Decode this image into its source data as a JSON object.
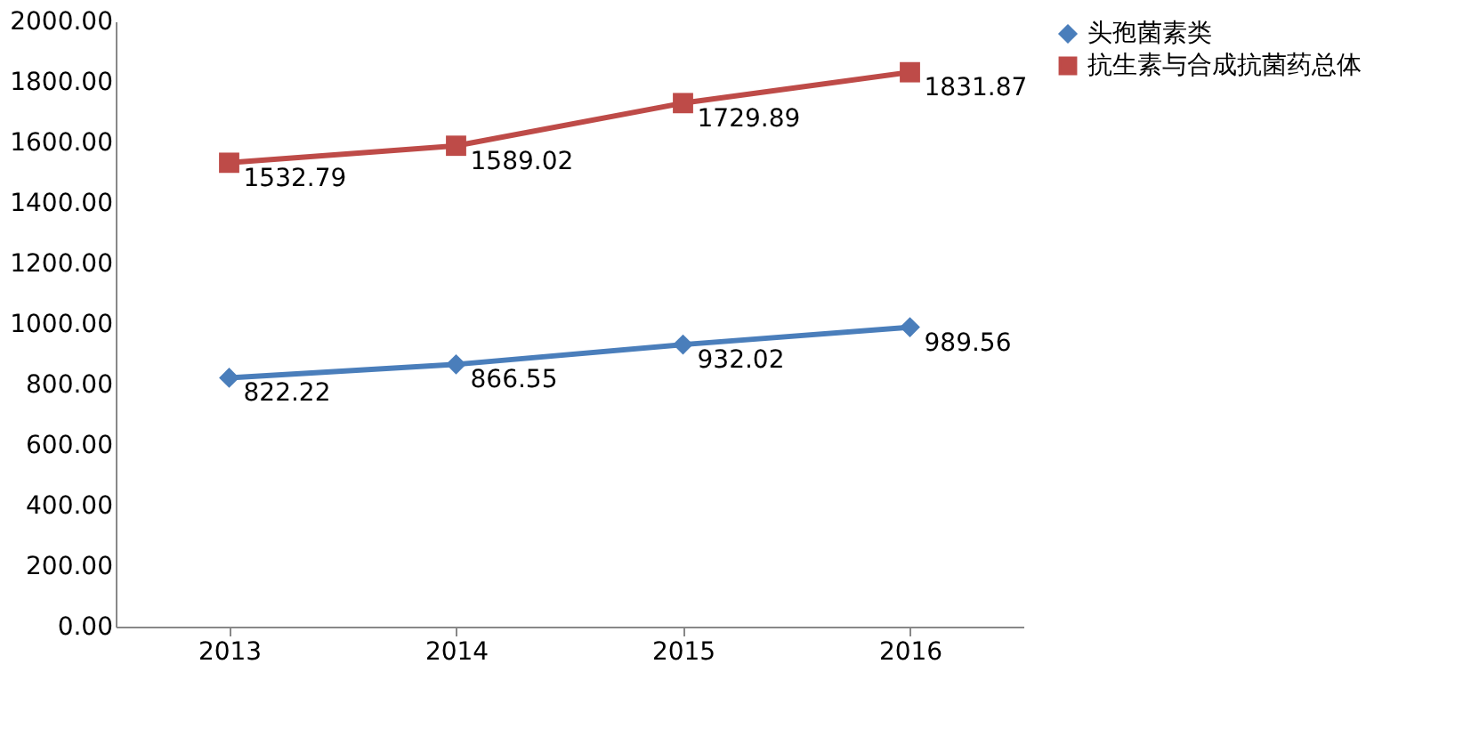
{
  "chart_data": {
    "type": "line",
    "categories": [
      "2013",
      "2014",
      "2015",
      "2016"
    ],
    "series": [
      {
        "name": "头孢菌素类",
        "color": "#4a7ebb",
        "marker": "diamond",
        "values": [
          822.22,
          866.55,
          932.02,
          989.56
        ]
      },
      {
        "name": "抗生素与合成抗菌药总体",
        "color": "#be4b48",
        "marker": "square",
        "values": [
          1532.79,
          1589.02,
          1729.89,
          1831.87
        ]
      }
    ],
    "ylim": [
      0,
      2000
    ],
    "yticks": [
      {
        "value": 0,
        "label": "0.00"
      },
      {
        "value": 200,
        "label": "200.00"
      },
      {
        "value": 400,
        "label": "400.00"
      },
      {
        "value": 600,
        "label": "600.00"
      },
      {
        "value": 800,
        "label": "800.00"
      },
      {
        "value": 1000,
        "label": "1000.00"
      },
      {
        "value": 1200,
        "label": "1200.00"
      },
      {
        "value": 1400,
        "label": "1400.00"
      },
      {
        "value": 1600,
        "label": "1600.00"
      },
      {
        "value": 1800,
        "label": "1800.00"
      },
      {
        "value": 2000,
        "label": "2000.00"
      }
    ],
    "data_labels": true,
    "grid": false,
    "legend": "right"
  }
}
